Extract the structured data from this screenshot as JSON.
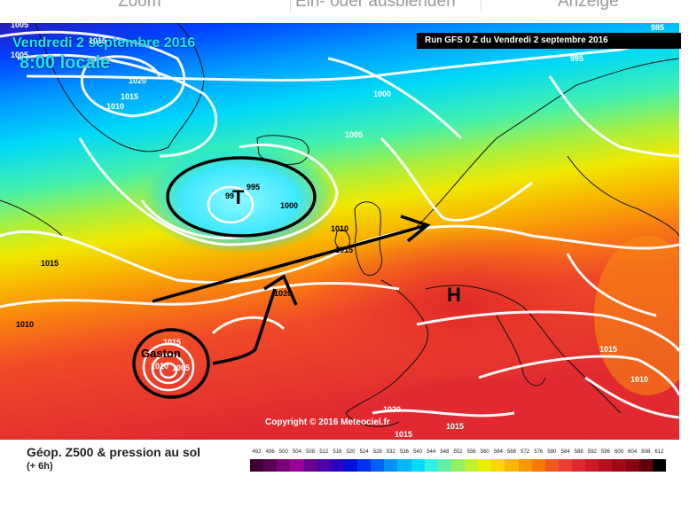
{
  "toolbar": {
    "items": [
      "Zoom",
      "Ein- oder ausblenden",
      "Anzeige"
    ]
  },
  "header": {
    "date": "Vendredi 2 septembre 2016",
    "time": "8:00 locale",
    "run": "Run GFS 0 Z du Vendredi 2 septembre 2016"
  },
  "copyright": "Copyright © 2016 Meteociel.fr",
  "legend": {
    "title": "Géop. Z500 & pression au sol",
    "subtitle": "(+ 6h)",
    "scale_values": [
      "492",
      "496",
      "500",
      "504",
      "508",
      "512",
      "516",
      "520",
      "524",
      "528",
      "532",
      "536",
      "540",
      "544",
      "548",
      "552",
      "556",
      "560",
      "564",
      "568",
      "572",
      "576",
      "580",
      "584",
      "588",
      "592",
      "596",
      "600",
      "604",
      "608",
      "612"
    ],
    "scale_colors": [
      "#3d0030",
      "#5a0052",
      "#7a0078",
      "#9a009a",
      "#6a0090",
      "#4b00a8",
      "#2a00c0",
      "#0010d8",
      "#0030f0",
      "#0060ff",
      "#0090ff",
      "#00b8ff",
      "#00dcff",
      "#30f0e0",
      "#60f0a0",
      "#90f060",
      "#c0f030",
      "#e8f000",
      "#f8d800",
      "#f8b800",
      "#f89800",
      "#f87800",
      "#f05a20",
      "#e84030",
      "#e02830",
      "#d01828",
      "#b81020",
      "#a00818",
      "#880010",
      "#600008",
      "#000000"
    ]
  },
  "map_labels": {
    "isobars": [
      "1005",
      "1005",
      "1015",
      "1020",
      "1015",
      "1010",
      "1000",
      "995",
      "985",
      "1005",
      "995",
      "1000",
      "99",
      "1010",
      "1015",
      "1015",
      "1010",
      "1020",
      "1015",
      "1010",
      "1005",
      "1015",
      "1020",
      "1015",
      "1015",
      "1010"
    ],
    "low_symbol": "T",
    "high_symbol": "H",
    "storm_name": "Gaston"
  }
}
